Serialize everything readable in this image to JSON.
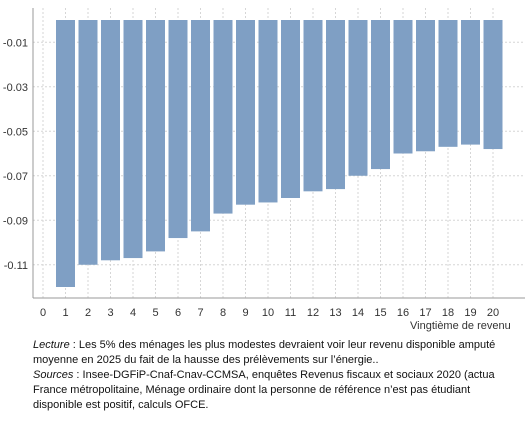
{
  "chart_data": {
    "type": "bar",
    "title": "",
    "xlabel": "Vingtième de revenu",
    "ylabel": "",
    "categories": [
      "1",
      "2",
      "3",
      "4",
      "5",
      "6",
      "7",
      "8",
      "9",
      "10",
      "11",
      "12",
      "13",
      "14",
      "15",
      "16",
      "17",
      "18",
      "19",
      "20"
    ],
    "x_ticks": [
      "0",
      "1",
      "2",
      "3",
      "4",
      "5",
      "6",
      "7",
      "8",
      "9",
      "10",
      "11",
      "12",
      "13",
      "14",
      "15",
      "16",
      "17",
      "18",
      "19",
      "20"
    ],
    "values": [
      -0.12,
      -0.11,
      -0.108,
      -0.107,
      -0.104,
      -0.098,
      -0.095,
      -0.087,
      -0.083,
      -0.082,
      -0.08,
      -0.077,
      -0.076,
      -0.07,
      -0.067,
      -0.06,
      -0.059,
      -0.057,
      -0.056,
      -0.058
    ],
    "y_ticks": [
      "-0.01",
      "-0.03",
      "-0.05",
      "-0.07",
      "-0.09",
      "-0.11"
    ],
    "y_tick_values": [
      -0.01,
      -0.03,
      -0.05,
      -0.07,
      -0.09,
      -0.11
    ],
    "ylim": [
      -0.126,
      0.0
    ],
    "grid": true,
    "bar_color": "#7f9fc4"
  },
  "notes": {
    "lecture_label": "Lecture",
    "lecture_text_1": " : Les 5% des ménages les plus modestes devraient voir leur revenu disponible amputé",
    "lecture_text_2": "moyenne  en 2025 du fait de la hausse des prélèvements sur l’énergie..",
    "sources_label": "Sources",
    "sources_text_1": " : Insee-DGFiP-Cnaf-Cnav-CCMSA, enquêtes Revenus fiscaux et sociaux 2020 (actua",
    "sources_text_2": "France métropolitaine, Ménage ordinaire dont la personne de référence n’est pas étudiant",
    "sources_text_3": "disponible  est positif, calculs OFCE."
  }
}
